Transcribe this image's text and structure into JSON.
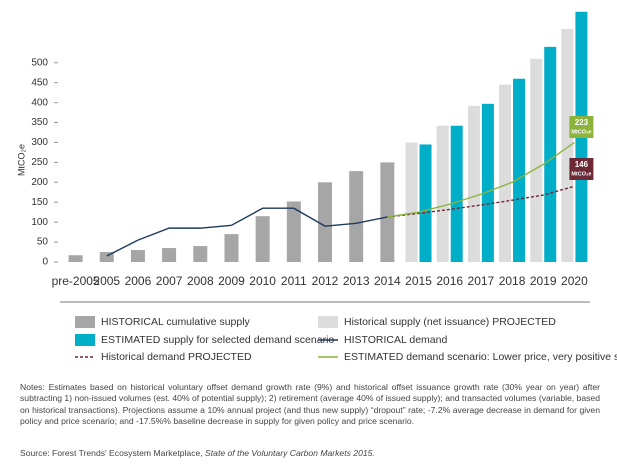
{
  "chart_data": {
    "type": "bar",
    "y_label": "MtCO₂e",
    "categories": [
      "pre-2005",
      "2005",
      "2006",
      "2007",
      "2008",
      "2009",
      "2010",
      "2011",
      "2012",
      "2013",
      "2014",
      "2015",
      "2016",
      "2017",
      "2018",
      "2019",
      "2020"
    ],
    "ylim": [
      0,
      630
    ],
    "yticks": [
      0,
      50,
      100,
      150,
      200,
      250,
      300,
      350,
      400,
      450,
      500
    ],
    "series": [
      {
        "name": "HISTORICAL cumulative supply",
        "kind": "bar",
        "color": "#a6a6a6",
        "values": [
          17,
          25,
          30,
          35,
          40,
          70,
          115,
          152,
          200,
          228,
          250,
          null,
          null,
          null,
          null,
          null,
          null
        ]
      },
      {
        "name": "Historical supply (net issuance) PROJECTED",
        "kind": "bar",
        "color": "#dcdcdc",
        "values": [
          null,
          null,
          null,
          null,
          null,
          null,
          null,
          null,
          null,
          null,
          null,
          300,
          342,
          392,
          445,
          510,
          585
        ]
      },
      {
        "name": "ESTIMATED supply for selected demand scenario",
        "kind": "bar",
        "color": "#00aec7",
        "values": [
          null,
          null,
          null,
          null,
          null,
          null,
          null,
          null,
          null,
          null,
          null,
          295,
          342,
          397,
          460,
          540,
          628
        ]
      },
      {
        "name": "HISTORICAL demand",
        "kind": "line",
        "color": "#1f3a5f",
        "values": [
          null,
          15,
          55,
          85,
          85,
          92,
          135,
          135,
          90,
          97,
          113,
          null,
          null,
          null,
          null,
          null,
          null
        ]
      },
      {
        "name": "Historical demand PROJECTED",
        "kind": "line",
        "dash": true,
        "color": "#6b2a36",
        "values": [
          null,
          null,
          null,
          null,
          null,
          null,
          null,
          null,
          null,
          null,
          113,
          122,
          132,
          143,
          155,
          168,
          190
        ]
      },
      {
        "name": "ESTIMATED demand scenario: Lower price, very positive signals",
        "kind": "line",
        "color": "#8cb43c",
        "values": [
          null,
          null,
          null,
          null,
          null,
          null,
          null,
          null,
          null,
          null,
          113,
          125,
          145,
          170,
          200,
          245,
          300
        ]
      }
    ],
    "annotations": [
      {
        "value": 223,
        "unit": "MtCO₂e",
        "color": "#8cb43c"
      },
      {
        "value": 146,
        "unit": "MtCO₂e",
        "color": "#6b2a36"
      }
    ],
    "notes": "Notes: Estimates based on historical voluntary offset demand growth rate (9%) and historical offset issuance growth rate (30% year on year) after subtracting 1) non-issued volumes (est. 40% of potential supply); 2) retirement (average 40% of issued supply); and transacted volumes (variable, based on historical transactions). Projections assume a 10% annual project (and thus new supply) “dropout” rate; -7.2% average decrease in demand for given policy and price scenario; and -17.5%% baseline decrease in supply for given policy and price scenario.",
    "source": "Source: Forest Trends' Ecosystem Marketplace, ",
    "source_title": "State of the Voluntary Carbon Markets 2015."
  }
}
